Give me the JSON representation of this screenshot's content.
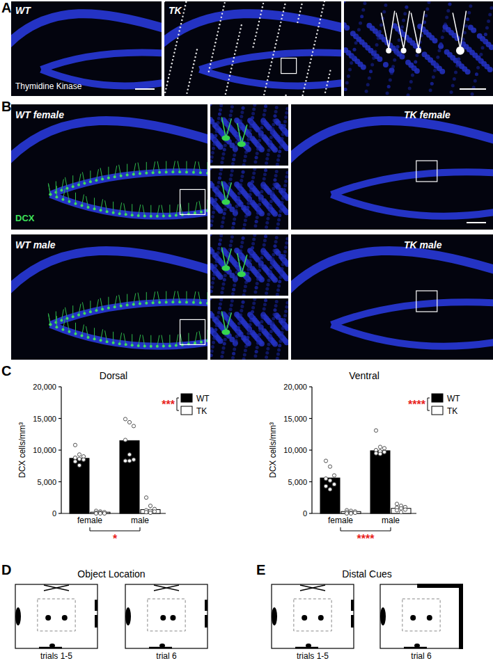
{
  "panels": {
    "A": {
      "label": "A",
      "left_title": "WT",
      "middle_title": "TK",
      "stain": "Thymidine Kinase"
    },
    "B": {
      "label": "B",
      "titles": [
        "WT female",
        "TK female",
        "WT male",
        "TK male"
      ],
      "stain": "DCX"
    },
    "C": {
      "label": "C"
    },
    "D": {
      "label": "D",
      "title": "Object Location",
      "captions": [
        "trials 1-5",
        "trial 6"
      ]
    },
    "E": {
      "label": "E",
      "title": "Distal Cues",
      "captions": [
        "trials 1-5",
        "trial 6"
      ]
    }
  },
  "chart_data": [
    {
      "type": "bar",
      "title": "Dorsal",
      "y_label": "DCX cells/mm³",
      "categories": [
        "female",
        "male"
      ],
      "series": [
        {
          "name": "WT",
          "color": "#000000",
          "values": [
            8700,
            11500
          ],
          "points": [
            [
              10800,
              9300,
              9000,
              8800,
              8600,
              8500,
              8200,
              7600
            ],
            [
              14900,
              14400,
              13800,
              11600,
              9300,
              8500,
              8300,
              8300
            ]
          ]
        },
        {
          "name": "TK",
          "color": "#ffffff",
          "values": [
            200,
            600
          ],
          "points": [
            [
              400,
              300,
              200,
              100,
              100,
              0,
              0,
              0
            ],
            [
              2500,
              1200,
              700,
              500,
              400,
              300,
              200,
              100
            ]
          ]
        }
      ],
      "ylim": [
        0,
        20000
      ],
      "yticks": [
        0,
        {
          "value": 5000,
          "label": "5,000"
        },
        {
          "value": 10000,
          "label": "10,000"
        },
        {
          "value": 15000,
          "label": "15,000"
        },
        {
          "value": 20000,
          "label": "20,000"
        }
      ],
      "annotations": [
        "***",
        "*"
      ]
    },
    {
      "type": "bar",
      "title": "Ventral",
      "y_label": "DCX cells/mm³",
      "categories": [
        "female",
        "male"
      ],
      "series": [
        {
          "name": "WT",
          "color": "#000000",
          "values": [
            5600,
            9900
          ],
          "points": [
            [
              8300,
              7400,
              6000,
              5500,
              5200,
              4600,
              4300,
              3800
            ],
            [
              13100,
              10500,
              10300,
              10000,
              9800,
              9700,
              9500,
              9400
            ]
          ]
        },
        {
          "name": "TK",
          "color": "#ffffff",
          "values": [
            300,
            800
          ],
          "points": [
            [
              500,
              400,
              300,
              200,
              100,
              100,
              0,
              0
            ],
            [
              1500,
              1200,
              1000,
              900,
              800,
              600,
              500,
              200
            ]
          ]
        }
      ],
      "ylim": [
        0,
        20000
      ],
      "yticks": [
        0,
        {
          "value": 5000,
          "label": "5,000"
        },
        {
          "value": 10000,
          "label": "10,000"
        },
        {
          "value": 15000,
          "label": "15,000"
        },
        {
          "value": 20000,
          "label": "20,000"
        }
      ],
      "annotations": [
        "****",
        "****"
      ]
    }
  ]
}
